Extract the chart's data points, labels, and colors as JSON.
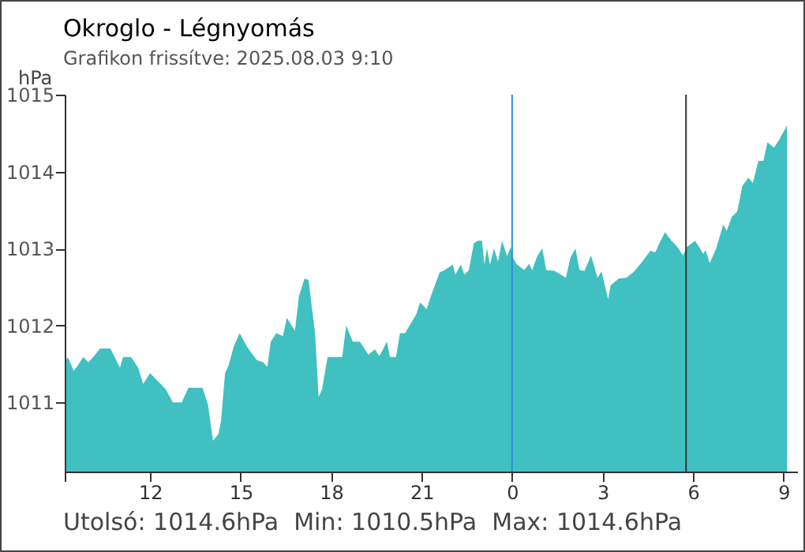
{
  "chart_data": {
    "type": "area",
    "title": "Okroglo - Légnyomás",
    "subtitle": "Grafikon frissítve: 2025.08.03 9:10",
    "ylabel": "hPa",
    "x": [
      "2025-08-02T09:13",
      "2025-08-02T09:16",
      "2025-08-02T09:28",
      "2025-08-02T09:36",
      "2025-08-02T09:47",
      "2025-08-02T09:57",
      "2025-08-02T10:08",
      "2025-08-02T10:20",
      "2025-08-02T10:41",
      "2025-08-02T11:00",
      "2025-08-02T11:06",
      "2025-08-02T11:22",
      "2025-08-02T11:36",
      "2025-08-02T11:46",
      "2025-08-02T12:00",
      "2025-08-02T12:10",
      "2025-08-02T12:31",
      "2025-08-02T12:45",
      "2025-08-02T13:03",
      "2025-08-02T13:16",
      "2025-08-02T13:44",
      "2025-08-02T13:55",
      "2025-08-02T14:05",
      "2025-08-02T14:16",
      "2025-08-02T14:21",
      "2025-08-02T14:29",
      "2025-08-02T14:36",
      "2025-08-02T14:46",
      "2025-08-02T14:58",
      "2025-08-02T15:13",
      "2025-08-02T15:32",
      "2025-08-02T15:45",
      "2025-08-02T15:53",
      "2025-08-02T16:00",
      "2025-08-02T16:11",
      "2025-08-02T16:24",
      "2025-08-02T16:32",
      "2025-08-02T16:48",
      "2025-08-02T16:56",
      "2025-08-02T17:07",
      "2025-08-02T17:15",
      "2025-08-02T17:28",
      "2025-08-02T17:35",
      "2025-08-02T17:42",
      "2025-08-02T17:53",
      "2025-08-02T18:22",
      "2025-08-02T18:30",
      "2025-08-02T18:43",
      "2025-08-02T18:57",
      "2025-08-02T19:14",
      "2025-08-02T19:27",
      "2025-08-02T19:36",
      "2025-08-02T19:51",
      "2025-08-02T19:57",
      "2025-08-02T20:09",
      "2025-08-02T20:17",
      "2025-08-02T20:27",
      "2025-08-02T20:36",
      "2025-08-02T20:49",
      "2025-08-02T20:57",
      "2025-08-02T21:10",
      "2025-08-02T21:20",
      "2025-08-02T21:36",
      "2025-08-02T21:46",
      "2025-08-02T22:02",
      "2025-08-02T22:07",
      "2025-08-02T22:18",
      "2025-08-02T22:25",
      "2025-08-02T22:34",
      "2025-08-02T22:44",
      "2025-08-02T22:52",
      "2025-08-02T23:00",
      "2025-08-02T23:05",
      "2025-08-02T23:10",
      "2025-08-02T23:16",
      "2025-08-02T23:24",
      "2025-08-02T23:32",
      "2025-08-02T23:40",
      "2025-08-02T23:50",
      "2025-08-02T23:57",
      "2025-08-03T00:03",
      "2025-08-03T00:10",
      "2025-08-03T00:24",
      "2025-08-03T00:34",
      "2025-08-03T00:40",
      "2025-08-03T00:50",
      "2025-08-03T01:00",
      "2025-08-03T01:08",
      "2025-08-03T01:24",
      "2025-08-03T01:37",
      "2025-08-03T01:47",
      "2025-08-03T01:56",
      "2025-08-03T02:06",
      "2025-08-03T02:14",
      "2025-08-03T02:24",
      "2025-08-03T02:37",
      "2025-08-03T02:50",
      "2025-08-03T02:58",
      "2025-08-03T03:11",
      "2025-08-03T03:16",
      "2025-08-03T03:32",
      "2025-08-03T03:47",
      "2025-08-03T04:03",
      "2025-08-03T04:19",
      "2025-08-03T04:35",
      "2025-08-03T04:45",
      "2025-08-03T04:53",
      "2025-08-03T05:04",
      "2025-08-03T05:17",
      "2025-08-03T05:29",
      "2025-08-03T05:40",
      "2025-08-03T05:48",
      "2025-08-03T06:04",
      "2025-08-03T06:14",
      "2025-08-03T06:20",
      "2025-08-03T06:25",
      "2025-08-03T06:33",
      "2025-08-03T06:46",
      "2025-08-03T07:00",
      "2025-08-03T07:07",
      "2025-08-03T07:17",
      "2025-08-03T07:28",
      "2025-08-03T07:38",
      "2025-08-03T07:50",
      "2025-08-03T07:59",
      "2025-08-03T08:10",
      "2025-08-03T08:20",
      "2025-08-03T08:28",
      "2025-08-03T08:41",
      "2025-08-03T08:51",
      "2025-08-03T09:07"
    ],
    "series": [
      {
        "color": "#40c0c0",
        "values": [
          1011.55,
          1011.59,
          1011.41,
          1011.48,
          1011.59,
          1011.52,
          1011.6,
          1011.7,
          1011.7,
          1011.45,
          1011.59,
          1011.59,
          1011.45,
          1011.24,
          1011.38,
          1011.31,
          1011.17,
          1011.0,
          1011.0,
          1011.19,
          1011.19,
          1010.97,
          1010.5,
          1010.59,
          1010.76,
          1011.38,
          1011.48,
          1011.72,
          1011.9,
          1011.72,
          1011.55,
          1011.52,
          1011.46,
          1011.79,
          1011.9,
          1011.86,
          1012.1,
          1011.93,
          1012.38,
          1012.61,
          1012.59,
          1011.9,
          1011.07,
          1011.17,
          1011.59,
          1011.59,
          1012.0,
          1011.79,
          1011.79,
          1011.62,
          1011.69,
          1011.6,
          1011.79,
          1011.59,
          1011.59,
          1011.9,
          1011.9,
          1012.0,
          1012.14,
          1012.3,
          1012.21,
          1012.41,
          1012.69,
          1012.72,
          1012.79,
          1012.66,
          1012.79,
          1012.66,
          1012.72,
          1013.07,
          1013.1,
          1013.1,
          1012.79,
          1013.0,
          1012.79,
          1013.0,
          1012.83,
          1013.1,
          1012.9,
          1013.02,
          1012.86,
          1012.79,
          1012.72,
          1012.8,
          1012.72,
          1012.9,
          1013.0,
          1012.72,
          1012.71,
          1012.66,
          1012.62,
          1012.88,
          1013.0,
          1012.72,
          1012.71,
          1012.91,
          1012.62,
          1012.7,
          1012.34,
          1012.52,
          1012.61,
          1012.62,
          1012.7,
          1012.83,
          1012.97,
          1012.95,
          1013.07,
          1013.21,
          1013.1,
          1013.02,
          1012.91,
          1013.02,
          1013.1,
          1013.0,
          1012.93,
          1012.98,
          1012.81,
          1013.0,
          1013.31,
          1013.23,
          1013.41,
          1013.48,
          1013.81,
          1013.92,
          1013.85,
          1014.14,
          1014.14,
          1014.38,
          1014.31,
          1014.41,
          1014.6
        ]
      }
    ],
    "xlim": [
      "2025-08-02T09:10",
      "2025-08-03T09:27"
    ],
    "xticks": [
      {
        "value": "2025-08-02T09:10",
        "label": null
      },
      {
        "value": "2025-08-02T12:00",
        "label": "12"
      },
      {
        "value": "2025-08-02T15:00",
        "label": "15"
      },
      {
        "value": "2025-08-02T18:00",
        "label": "18"
      },
      {
        "value": "2025-08-02T21:00",
        "label": "21"
      },
      {
        "value": "2025-08-03T00:00",
        "label": "0"
      },
      {
        "value": "2025-08-03T03:00",
        "label": "3"
      },
      {
        "value": "2025-08-03T06:00",
        "label": "6"
      },
      {
        "value": "2025-08-03T09:00",
        "label": "9"
      }
    ],
    "ylim": [
      1010.1,
      1015
    ],
    "yticks": [
      1011,
      1012,
      1013,
      1014,
      1015
    ],
    "ref_lines": [
      {
        "axis": "x",
        "value": "2025-08-03T00:00",
        "color": "#2b8fd8"
      },
      {
        "axis": "x",
        "value": "2025-08-03T05:46",
        "color": "#333333"
      }
    ],
    "annotations": [
      "Utolsó: 1014.6hPa  Min: 1010.5hPa  Max: 1014.6hPa"
    ]
  }
}
